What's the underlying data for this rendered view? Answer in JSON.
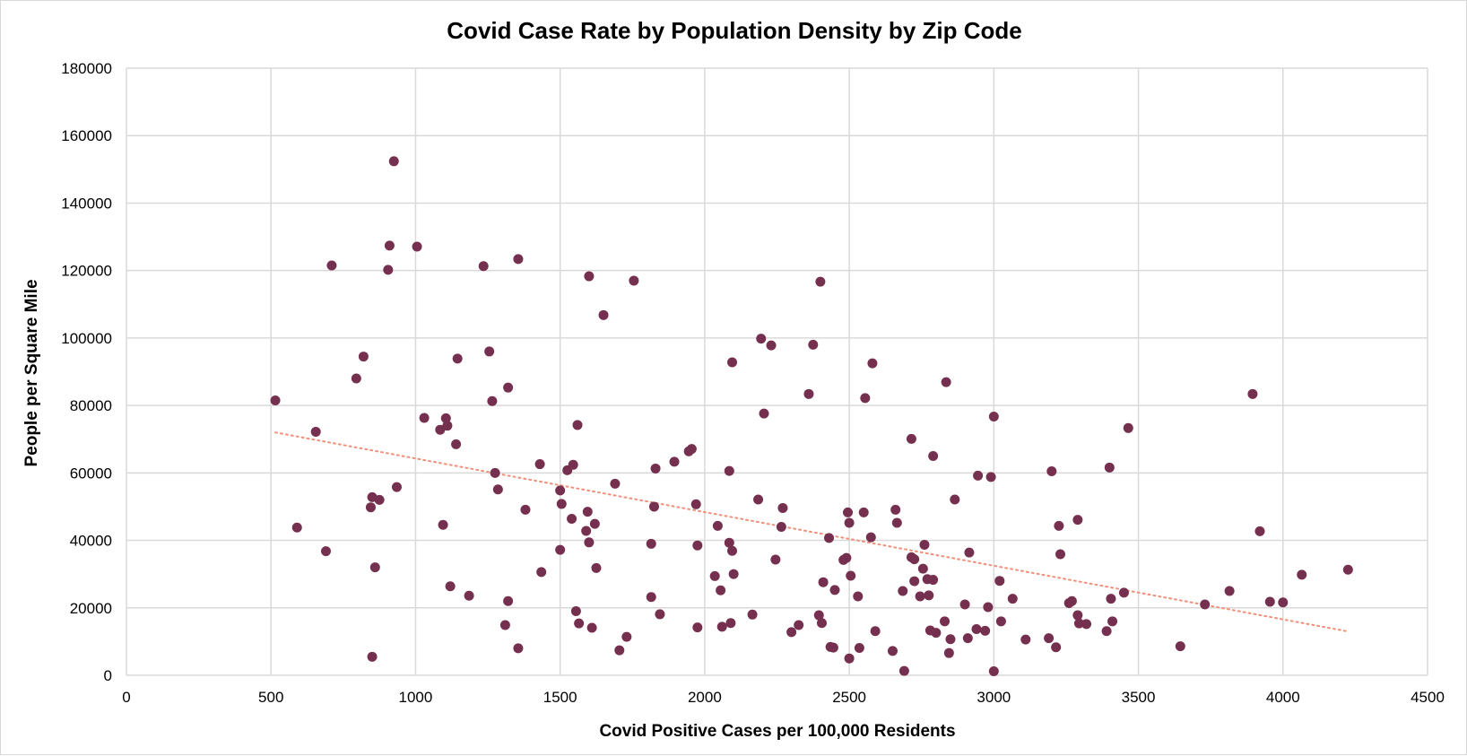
{
  "chart_data": {
    "type": "scatter",
    "title": "Covid Case Rate by Population Density by Zip Code",
    "xlabel": "Covid Positive Cases per 100,000  Residents",
    "ylabel": "People per Square Mile",
    "xlim": [
      0,
      4500
    ],
    "ylim": [
      0,
      180000
    ],
    "x_ticks": [
      0,
      500,
      1000,
      1500,
      2000,
      2500,
      3000,
      3500,
      4000,
      4500
    ],
    "y_ticks": [
      0,
      20000,
      40000,
      60000,
      80000,
      100000,
      120000,
      140000,
      160000,
      180000
    ],
    "grid": true,
    "legend": "none",
    "colors": {
      "points": "#76304f",
      "trendline": "#f0907a",
      "grid": "#d9d9d9"
    },
    "series": [
      {
        "points": [
          [
            515,
            81500
          ],
          [
            590,
            43800
          ],
          [
            655,
            72200
          ],
          [
            690,
            36800
          ],
          [
            710,
            121500
          ],
          [
            795,
            88000
          ],
          [
            820,
            94500
          ],
          [
            845,
            49800
          ],
          [
            850,
            52800
          ],
          [
            850,
            5500
          ],
          [
            860,
            32000
          ],
          [
            875,
            52000
          ],
          [
            905,
            120200
          ],
          [
            910,
            127400
          ],
          [
            925,
            152400
          ],
          [
            935,
            55800
          ],
          [
            1005,
            127100
          ],
          [
            1030,
            76300
          ],
          [
            1085,
            72800
          ],
          [
            1095,
            44600
          ],
          [
            1105,
            76200
          ],
          [
            1110,
            74000
          ],
          [
            1120,
            26400
          ],
          [
            1140,
            68500
          ],
          [
            1145,
            93900
          ],
          [
            1185,
            23600
          ],
          [
            1235,
            121300
          ],
          [
            1255,
            96000
          ],
          [
            1265,
            81300
          ],
          [
            1275,
            60000
          ],
          [
            1285,
            55100
          ],
          [
            1310,
            14900
          ],
          [
            1320,
            85300
          ],
          [
            1320,
            22000
          ],
          [
            1355,
            8000
          ],
          [
            1355,
            123400
          ],
          [
            1380,
            49100
          ],
          [
            1430,
            62600
          ],
          [
            1435,
            30600
          ],
          [
            1500,
            54800
          ],
          [
            1500,
            37200
          ],
          [
            1505,
            50800
          ],
          [
            1525,
            60800
          ],
          [
            1540,
            46400
          ],
          [
            1545,
            62400
          ],
          [
            1555,
            19000
          ],
          [
            1560,
            74200
          ],
          [
            1565,
            15400
          ],
          [
            1590,
            42800
          ],
          [
            1595,
            48500
          ],
          [
            1600,
            39400
          ],
          [
            1600,
            118300
          ],
          [
            1610,
            14100
          ],
          [
            1620,
            44900
          ],
          [
            1625,
            31800
          ],
          [
            1650,
            106800
          ],
          [
            1690,
            56800
          ],
          [
            1705,
            7400
          ],
          [
            1730,
            11400
          ],
          [
            1755,
            117000
          ],
          [
            1815,
            39000
          ],
          [
            1815,
            23200
          ],
          [
            1825,
            50000
          ],
          [
            1830,
            61300
          ],
          [
            1845,
            18100
          ],
          [
            1895,
            63300
          ],
          [
            1945,
            66400
          ],
          [
            1955,
            67100
          ],
          [
            1970,
            50700
          ],
          [
            1975,
            38500
          ],
          [
            1975,
            14200
          ],
          [
            2035,
            29400
          ],
          [
            2045,
            44300
          ],
          [
            2055,
            25200
          ],
          [
            2060,
            14400
          ],
          [
            2085,
            60600
          ],
          [
            2085,
            39300
          ],
          [
            2090,
            15500
          ],
          [
            2095,
            92800
          ],
          [
            2095,
            36900
          ],
          [
            2100,
            30000
          ],
          [
            2165,
            18000
          ],
          [
            2185,
            52100
          ],
          [
            2195,
            99800
          ],
          [
            2205,
            77600
          ],
          [
            2230,
            97800
          ],
          [
            2245,
            34300
          ],
          [
            2265,
            44000
          ],
          [
            2270,
            49600
          ],
          [
            2300,
            12800
          ],
          [
            2325,
            14900
          ],
          [
            2360,
            83400
          ],
          [
            2375,
            98000
          ],
          [
            2395,
            17800
          ],
          [
            2400,
            116700
          ],
          [
            2405,
            15500
          ],
          [
            2410,
            27600
          ],
          [
            2430,
            40700
          ],
          [
            2435,
            8400
          ],
          [
            2445,
            8200
          ],
          [
            2450,
            25300
          ],
          [
            2480,
            34200
          ],
          [
            2490,
            34800
          ],
          [
            2495,
            48300
          ],
          [
            2500,
            45200
          ],
          [
            2505,
            29500
          ],
          [
            2500,
            5000
          ],
          [
            2530,
            23400
          ],
          [
            2535,
            8100
          ],
          [
            2550,
            48300
          ],
          [
            2555,
            82200
          ],
          [
            2575,
            40900
          ],
          [
            2580,
            92500
          ],
          [
            2590,
            13100
          ],
          [
            2650,
            7200
          ],
          [
            2660,
            49100
          ],
          [
            2665,
            45200
          ],
          [
            2685,
            25000
          ],
          [
            2690,
            1300
          ],
          [
            2715,
            70100
          ],
          [
            2715,
            35000
          ],
          [
            2725,
            34400
          ],
          [
            2725,
            27900
          ],
          [
            2745,
            23400
          ],
          [
            2755,
            31600
          ],
          [
            2760,
            38700
          ],
          [
            2770,
            28500
          ],
          [
            2775,
            23700
          ],
          [
            2780,
            13300
          ],
          [
            2790,
            65000
          ],
          [
            2790,
            28300
          ],
          [
            2800,
            12600
          ],
          [
            2830,
            16000
          ],
          [
            2835,
            86900
          ],
          [
            2845,
            6600
          ],
          [
            2850,
            10700
          ],
          [
            2865,
            52100
          ],
          [
            2900,
            21000
          ],
          [
            2910,
            11000
          ],
          [
            2915,
            36400
          ],
          [
            2940,
            13700
          ],
          [
            2945,
            59200
          ],
          [
            2970,
            13200
          ],
          [
            2980,
            20200
          ],
          [
            2990,
            58800
          ],
          [
            3000,
            76700
          ],
          [
            3000,
            1200
          ],
          [
            3020,
            28000
          ],
          [
            3025,
            16000
          ],
          [
            3065,
            22700
          ],
          [
            3110,
            10600
          ],
          [
            3190,
            11000
          ],
          [
            3200,
            60500
          ],
          [
            3215,
            8300
          ],
          [
            3225,
            44300
          ],
          [
            3230,
            35900
          ],
          [
            3260,
            21400
          ],
          [
            3270,
            22000
          ],
          [
            3290,
            46100
          ],
          [
            3290,
            17800
          ],
          [
            3295,
            15400
          ],
          [
            3320,
            15200
          ],
          [
            3390,
            13100
          ],
          [
            3400,
            61600
          ],
          [
            3405,
            22700
          ],
          [
            3410,
            16000
          ],
          [
            3450,
            24500
          ],
          [
            3465,
            73300
          ],
          [
            3645,
            8600
          ],
          [
            3730,
            21000
          ],
          [
            3815,
            25000
          ],
          [
            3895,
            83400
          ],
          [
            3920,
            42700
          ],
          [
            3955,
            21800
          ],
          [
            4000,
            21600
          ],
          [
            4065,
            29800
          ],
          [
            4225,
            31300
          ]
        ]
      }
    ],
    "trendline": {
      "type": "linear",
      "from": [
        515,
        72000
      ],
      "to": [
        4225,
        13000
      ],
      "style": "dotted"
    }
  }
}
